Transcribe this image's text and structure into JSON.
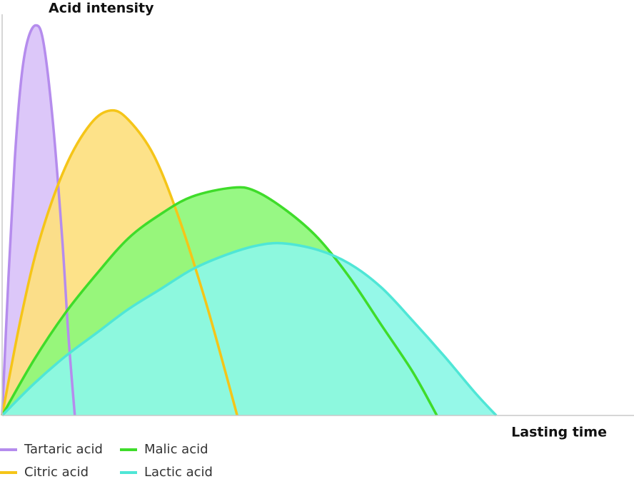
{
  "chart_data": {
    "type": "area",
    "y_label": "Acid intensity",
    "x_label": "Lasting time",
    "xlim": [
      0,
      100
    ],
    "ylim": [
      0,
      100
    ],
    "series": [
      {
        "name": "Tartaric acid",
        "color": "#b58ced",
        "fill": "#d9c2f8",
        "x": [
          0,
          1,
          2,
          3,
          4,
          5.3,
          6.5,
          8,
          9.5,
          10.5,
          11.5
        ],
        "values": [
          0,
          35,
          65,
          85,
          95,
          99,
          95,
          75,
          45,
          20,
          0
        ]
      },
      {
        "name": "Citric acid",
        "color": "#f5c518",
        "fill": "#fde07f",
        "x": [
          0,
          3,
          6,
          10,
          14,
          17.2,
          20,
          24,
          28,
          32,
          35,
          37.2
        ],
        "values": [
          0,
          25,
          45,
          63,
          74,
          77.4,
          75,
          66,
          50,
          30,
          13,
          0
        ]
      },
      {
        "name": "Malic acid",
        "color": "#3fdc2a",
        "fill": "#8ef77a",
        "x": [
          0,
          5,
          10,
          15,
          20,
          25,
          30,
          36.4,
          40,
          45,
          50,
          55,
          60,
          65,
          68.8
        ],
        "values": [
          0,
          14,
          26,
          36,
          45,
          51,
          55.5,
          57.8,
          57,
          52,
          45,
          35,
          23,
          11,
          0
        ]
      },
      {
        "name": "Lactic acid",
        "color": "#4fe6d6",
        "fill": "#8cf7e6",
        "x": [
          0,
          5,
          10,
          15,
          20,
          25,
          30,
          35,
          40,
          44.3,
          50,
          55,
          60,
          65,
          70,
          75,
          78.2
        ],
        "values": [
          0,
          8,
          15,
          21,
          27,
          32,
          37,
          40.5,
          43,
          43.7,
          42,
          38.5,
          32.5,
          24,
          15,
          5.5,
          0
        ]
      }
    ]
  }
}
